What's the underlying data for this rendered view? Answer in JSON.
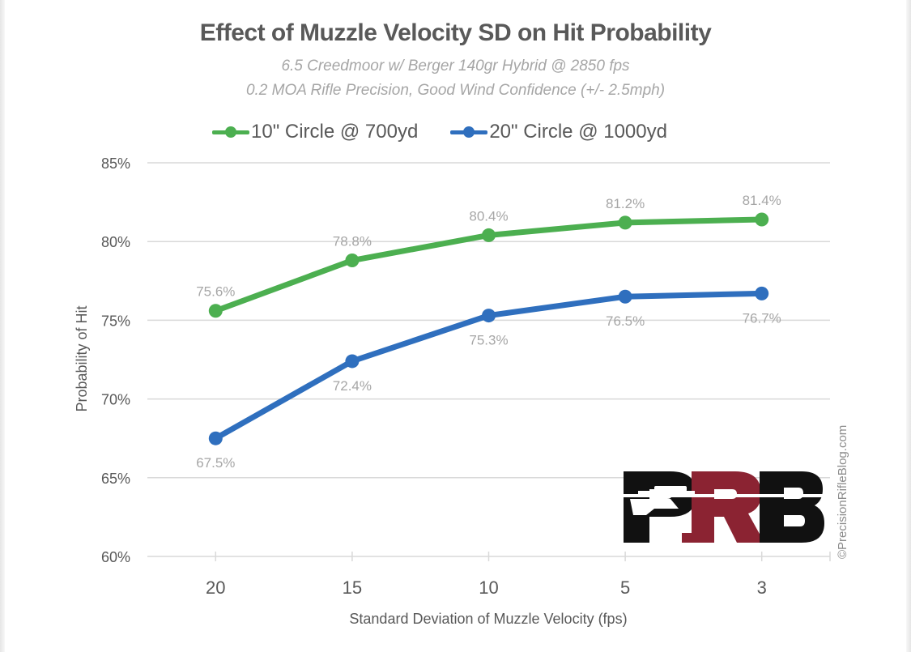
{
  "chart_data": {
    "type": "line",
    "title": "Effect of Muzzle Velocity SD on Hit Probability",
    "subtitles": [
      "6.5 Creedmoor w/ Berger 140gr Hybrid @ 2850 fps",
      "0.2 MOA Rifle Precision, Good Wind Confidence (+/- 2.5mph)"
    ],
    "xlabel": "Standard Deviation of Muzzle Velocity (fps)",
    "ylabel": "Probability of Hit",
    "categories": [
      "20",
      "15",
      "10",
      "5",
      "3"
    ],
    "ylim": [
      60,
      85
    ],
    "yticks": [
      60,
      65,
      70,
      75,
      80,
      85
    ],
    "ytick_labels": [
      "60%",
      "65%",
      "70%",
      "75%",
      "80%",
      "85%"
    ],
    "grid": true,
    "legend_position": "top",
    "series": [
      {
        "name": "10\" Circle @ 700yd",
        "color": "#4caf50",
        "values": [
          75.6,
          78.8,
          80.4,
          81.2,
          81.4
        ],
        "labels": [
          "75.6%",
          "78.8%",
          "80.4%",
          "81.2%",
          "81.4%"
        ],
        "label_position": "above"
      },
      {
        "name": "20\" Circle @ 1000yd",
        "color": "#2f6fbe",
        "values": [
          67.5,
          72.4,
          75.3,
          76.5,
          76.7
        ],
        "labels": [
          "67.5%",
          "72.4%",
          "75.3%",
          "76.5%",
          "76.7%"
        ],
        "label_position": "below"
      }
    ]
  },
  "watermark": "©PrecisionRifleBlog.com",
  "logo": {
    "text": "PRB",
    "colors": {
      "dark": "#111111",
      "accent": "#8b2332"
    }
  }
}
